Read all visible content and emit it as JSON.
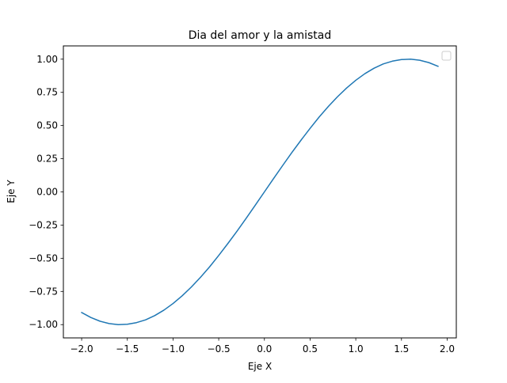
{
  "chart_data": {
    "type": "line",
    "title": "Dia del amor y la amistad",
    "xlabel": "Eje X",
    "ylabel": "Eje Y",
    "xlim": [
      -2.2,
      2.1
    ],
    "ylim": [
      -1.1,
      1.1
    ],
    "xticks": [
      -2.0,
      -1.5,
      -1.0,
      -0.5,
      0.0,
      0.5,
      1.0,
      1.5,
      2.0
    ],
    "xtick_labels": [
      "−2.0",
      "−1.5",
      "−1.0",
      "−0.5",
      "0.0",
      "0.5",
      "1.0",
      "1.5",
      "2.0"
    ],
    "yticks": [
      -1.0,
      -0.75,
      -0.5,
      -0.25,
      0.0,
      0.25,
      0.5,
      0.75,
      1.0
    ],
    "ytick_labels": [
      "−1.00",
      "−0.75",
      "−0.50",
      "−0.25",
      "0.00",
      "0.25",
      "0.50",
      "0.75",
      "1.00"
    ],
    "grid": false,
    "legend": {
      "location": "upper right",
      "entries": []
    },
    "series": [
      {
        "color": "#1f77b4",
        "x": [
          -2.0,
          -1.9,
          -1.8,
          -1.7,
          -1.6,
          -1.5,
          -1.4,
          -1.3,
          -1.2,
          -1.1,
          -1.0,
          -0.9,
          -0.8,
          -0.7,
          -0.6,
          -0.5,
          -0.4,
          -0.3,
          -0.2,
          -0.1,
          0.0,
          0.1,
          0.2,
          0.3,
          0.4,
          0.5,
          0.6,
          0.7,
          0.8,
          0.9,
          1.0,
          1.1,
          1.2,
          1.3,
          1.4,
          1.5,
          1.6,
          1.7,
          1.8,
          1.9
        ],
        "y": [
          -0.909,
          -0.946,
          -0.974,
          -0.992,
          -1.0,
          -0.997,
          -0.985,
          -0.964,
          -0.932,
          -0.891,
          -0.841,
          -0.783,
          -0.717,
          -0.644,
          -0.565,
          -0.479,
          -0.389,
          -0.296,
          -0.199,
          -0.1,
          0.0,
          0.1,
          0.199,
          0.296,
          0.389,
          0.479,
          0.565,
          0.644,
          0.717,
          0.783,
          0.841,
          0.891,
          0.932,
          0.964,
          0.985,
          0.997,
          1.0,
          0.992,
          0.974,
          0.946
        ]
      }
    ]
  }
}
